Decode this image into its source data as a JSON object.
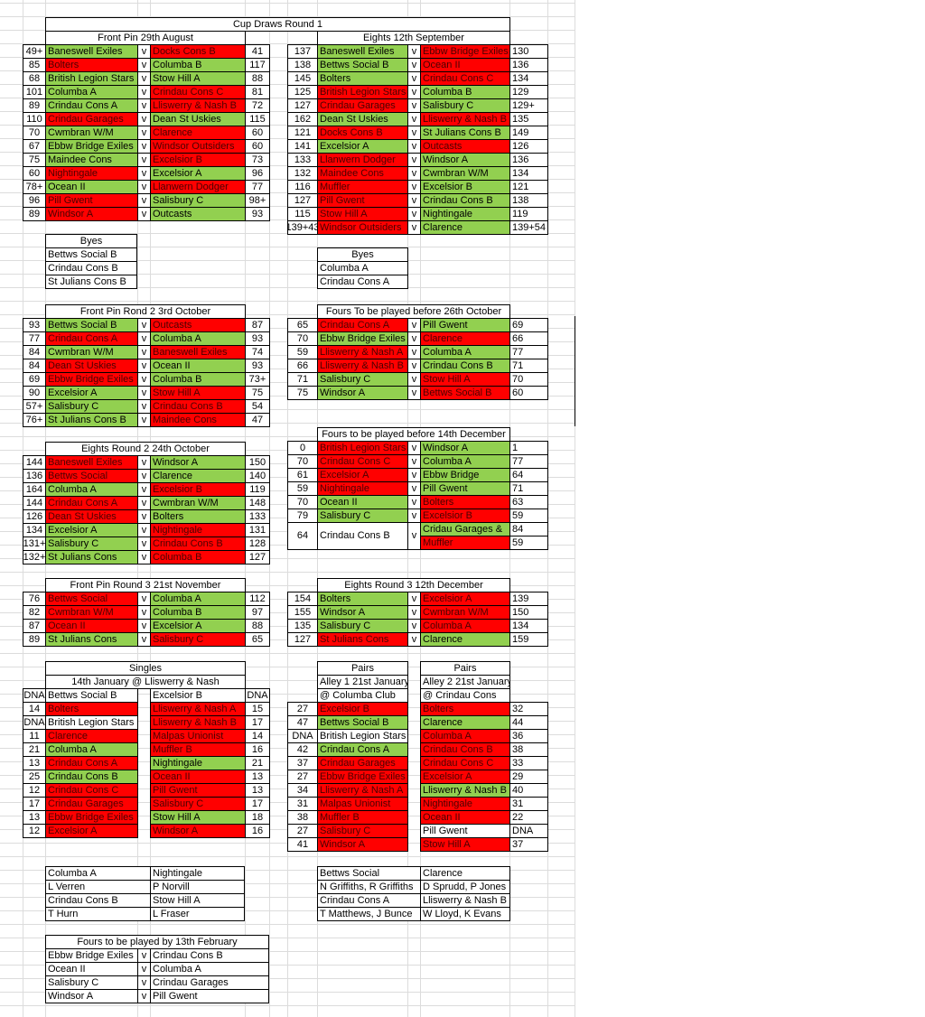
{
  "title": "Cup Draws Round 1",
  "palette": {
    "g": "#92d050",
    "r": "#ff0000",
    "w": "#ffffff"
  },
  "sections": {
    "front_pin_1": {
      "header": [
        [
          "Front Pin 29th August"
        ]
      ],
      "rows": [
        [
          "49+",
          "Baneswell Exiles",
          "v",
          "Docks Cons B",
          41
        ],
        [
          85,
          "Bolters",
          "v",
          "Columba B",
          117
        ],
        [
          68,
          "British Legion Stars",
          "v",
          "Stow Hill A",
          88
        ],
        [
          101,
          "Columba A",
          "v",
          "Crindau Cons C",
          81
        ],
        [
          89,
          "Crindau Cons A",
          "v",
          "Lliswerry & Nash B",
          72
        ],
        [
          110,
          "Crindau Garages",
          "v",
          "Dean St Uskies",
          115
        ],
        [
          70,
          "Cwmbran W/M",
          "v",
          "Clarence",
          60
        ],
        [
          67,
          "Ebbw Bridge Exiles",
          "v",
          "Windsor Outsiders",
          60
        ],
        [
          75,
          "Maindee Cons",
          "v",
          "Excelsior B",
          73
        ],
        [
          60,
          "Nightingale",
          "v",
          "Excelsior A",
          96
        ],
        [
          "78+",
          "Ocean II",
          "v",
          "Llanwern Dodger",
          77
        ],
        [
          96,
          "Pill Gwent",
          "v",
          "Salisbury C",
          "98+"
        ],
        [
          89,
          "Windsor A",
          "v",
          "Outcasts",
          93
        ]
      ],
      "fills": [
        "gr",
        "rg",
        "gg",
        "gr",
        "gr",
        "rg",
        "gr",
        "gr",
        "gr",
        "rg",
        "gr",
        "rg",
        "rg"
      ]
    },
    "eights_1": {
      "header": [
        [
          "Eights 12th September"
        ]
      ],
      "rows": [
        [
          137,
          "Baneswell Exiles",
          "v",
          "Ebbw Bridge Exiles",
          130
        ],
        [
          138,
          "Bettws Social B",
          "v",
          "Ocean II",
          136
        ],
        [
          145,
          "Bolters",
          "v",
          "Crindau Cons C",
          134
        ],
        [
          125,
          "British Legion Stars",
          "v",
          "Columba B",
          129
        ],
        [
          127,
          "Crindau Garages",
          "v",
          "Salisbury C",
          "129+"
        ],
        [
          162,
          "Dean St Uskies",
          "v",
          "Lliswerry & Nash B",
          135
        ],
        [
          121,
          "Docks Cons B",
          "v",
          "St Julians Cons B",
          149
        ],
        [
          141,
          "Excelsior A",
          "v",
          "Outcasts",
          126
        ],
        [
          133,
          "Llanwern Dodger",
          "v",
          "Windsor A",
          136
        ],
        [
          132,
          "Maindee Cons",
          "v",
          "Cwmbran W/M",
          134
        ],
        [
          116,
          "Muffler",
          "v",
          "Excelsior B",
          121
        ],
        [
          127,
          "Pill Gwent",
          "v",
          "Crindau Cons B",
          138
        ],
        [
          115,
          "Stow Hill A",
          "v",
          "Nightingale",
          119
        ],
        [
          "139+43",
          "Windsor Outsiders",
          "v",
          "Clarence",
          "139+54"
        ]
      ],
      "fills": [
        "gr",
        "gr",
        "gr",
        "rg",
        "rg",
        "gr",
        "rg",
        "gr",
        "rg",
        "rg",
        "rg",
        "rg",
        "rg",
        "rg"
      ]
    },
    "byes_1": {
      "header": [
        [
          "Byes"
        ]
      ],
      "rows": [
        [
          "Bettws Social B"
        ],
        [
          "Crindau Cons B"
        ],
        [
          "St Julians Cons B"
        ]
      ],
      "fills": [
        "w",
        "w",
        "w"
      ]
    },
    "byes_2": {
      "header": [
        [
          "Byes"
        ]
      ],
      "rows": [
        [
          "Columba A"
        ],
        [
          "Crindau Cons A"
        ]
      ],
      "fills": [
        "w",
        "w"
      ]
    },
    "front_pin_2": {
      "header": [
        [
          "Front Pin Rond 2  3rd October"
        ]
      ],
      "rows": [
        [
          93,
          "Bettws Social B",
          "v",
          "Outcasts",
          87
        ],
        [
          77,
          "Crindau Cons A",
          "v",
          "Columba A",
          93
        ],
        [
          84,
          "Cwmbran W/M",
          "v",
          "Baneswell Exiles",
          74
        ],
        [
          84,
          "Dean St Uskies",
          "v",
          "Ocean II",
          93
        ],
        [
          69,
          "Ebbw Bridge Exiles",
          "v",
          "Columba B",
          "73+"
        ],
        [
          90,
          "Excelsior A",
          "v",
          "Stow Hill A",
          75
        ],
        [
          "57+",
          "Salisbury C",
          "v",
          "Crindau Cons B",
          54
        ],
        [
          "76+",
          "St Julians Cons B",
          "v",
          "Maindee Cons",
          47
        ]
      ],
      "fills": [
        "gr",
        "rg",
        "gr",
        "rg",
        "rg",
        "gr",
        "gr",
        "gr"
      ]
    },
    "fours_oct": {
      "header": [
        [
          "Fours To be played before 26th October"
        ]
      ],
      "rows": [
        [
          65,
          "Crindau Cons A",
          "v",
          "Pill Gwent",
          69
        ],
        [
          70,
          "Ebbw Bridge Exiles",
          "v",
          "Clarence",
          66
        ],
        [
          59,
          "Lliswerry & Nash A",
          "v",
          "Columba A",
          77
        ],
        [
          66,
          "Lliswerry & Nash B",
          "v",
          "Crindau Cons B",
          71
        ],
        [
          71,
          "Salisbury C",
          "v",
          "Stow Hill A",
          70
        ],
        [
          75,
          "Windsor A",
          "v",
          "Bettws Social B",
          60
        ]
      ],
      "fills": [
        "rg",
        "gr",
        "rg",
        "rg",
        "gr",
        "gr"
      ]
    },
    "fours_dec": {
      "header": [
        [
          "Fours to be played before 14th December"
        ]
      ],
      "rows": [
        [
          0,
          "British Legion Stars",
          "v",
          "Windsor A",
          1
        ],
        [
          70,
          "Crindau Cons C",
          "v",
          "Columba A",
          77
        ],
        [
          61,
          "Excelsior A",
          "v",
          " Ebbw Bridge",
          64
        ],
        [
          59,
          "Nightingale",
          "v",
          "Pill Gwent",
          71
        ],
        [
          70,
          "Ocean II",
          "v",
          "Bolters",
          63
        ],
        [
          79,
          "Salisbury C",
          "v",
          "Excelsior B",
          59
        ],
        [
          64,
          "Crindau Cons B",
          "v",
          "Cridau Garages &",
          84
        ],
        [
          null,
          null,
          null,
          "Muffler",
          59
        ]
      ],
      "fills": [
        "rg",
        "rg",
        "rg",
        "rg",
        "gr",
        "gr",
        "wg",
        "wr"
      ]
    },
    "eights_2": {
      "header": [
        [
          "Eights Round 2 24th October"
        ]
      ],
      "rows": [
        [
          144,
          "Baneswell Exiles",
          "v",
          "Windsor A",
          150
        ],
        [
          136,
          "Bettws Social",
          "v",
          "Clarence",
          140
        ],
        [
          164,
          "Columba A",
          "v",
          "Excelsior B",
          119
        ],
        [
          144,
          "Crindau Cons A",
          "v",
          "Cwmbran W/M",
          148
        ],
        [
          126,
          "Dean St Uskies",
          "v",
          "Bolters",
          133
        ],
        [
          134,
          "Excelsior A",
          "v",
          "Nightingale",
          131
        ],
        [
          "131+",
          "Salisbury C",
          "v",
          " Crindau Cons B",
          128
        ],
        [
          "132+",
          "St Julians Cons",
          "v",
          " Columba B",
          127
        ]
      ],
      "fills": [
        "rg",
        "rg",
        "gr",
        "rg",
        "rg",
        "gr",
        "gr",
        "gr"
      ]
    },
    "front_pin_3": {
      "header": [
        [
          "Front Pin Round 3 21st November"
        ]
      ],
      "rows": [
        [
          76,
          "Bettws Social",
          "v",
          "Columba A",
          112
        ],
        [
          82,
          "Cwmbran W/M",
          "v",
          " Columba B",
          97
        ],
        [
          87,
          "Ocean II",
          "v",
          "Excelsior A",
          88
        ],
        [
          89,
          "St Julians Cons",
          "v",
          "Salisbury C",
          65
        ]
      ],
      "fills": [
        "rg",
        "rg",
        "rg",
        "gr"
      ]
    },
    "eights_3": {
      "header": [
        [
          "Eights Round 3 12th December"
        ]
      ],
      "rows": [
        [
          154,
          "Bolters",
          "v",
          "Excelsior A",
          139
        ],
        [
          155,
          "Windsor A",
          "v",
          "Cwmbran W/M",
          150
        ],
        [
          135,
          "Salisbury C",
          "v",
          "Columba A",
          134
        ],
        [
          127,
          "St Julians Cons",
          "v",
          "Clarence",
          159
        ]
      ],
      "fills": [
        "gr",
        "gr",
        "gr",
        "rg"
      ]
    },
    "singles": {
      "header": [
        [
          "Singles"
        ],
        [
          "14th January  @ Lliswerry & Nash"
        ]
      ],
      "rows": [
        [
          "DNA",
          "Bettws Social B",
          "Excelsior B",
          "DNA"
        ],
        [
          14,
          "Bolters",
          "Lliswerry & Nash A",
          15
        ],
        [
          "DNA",
          "British Legion Stars",
          "Lliswerry & Nash B",
          17
        ],
        [
          11,
          "Clarence",
          "Malpas Unionist",
          14
        ],
        [
          21,
          "Columba A",
          "Muffler B",
          16
        ],
        [
          13,
          "Crindau Cons A",
          "Nightingale",
          21
        ],
        [
          25,
          "Crindau Cons B",
          "Ocean II",
          13
        ],
        [
          12,
          "Crindau Cons C",
          "Pill Gwent",
          13
        ],
        [
          17,
          "Crindau Garages",
          "Salisbury C",
          17
        ],
        [
          13,
          "Ebbw Bridge Exiles",
          "Stow Hill A",
          18
        ],
        [
          12,
          "Excelsior A",
          "Windsor A",
          16
        ]
      ],
      "fills": [
        "ww",
        "rr",
        "wr",
        "rr",
        "gr",
        "rg",
        "gr",
        "rr",
        "rr",
        "rg",
        "rr"
      ]
    },
    "pairs": {
      "header": [
        [
          "Pairs",
          "Pairs"
        ],
        [
          "Alley 1 21st January",
          "Alley 2 21st January"
        ],
        [
          "@ Columba Club",
          "@ Crindau Cons"
        ]
      ],
      "rows": [
        [
          27,
          "Excelsior B",
          "Bolters",
          32
        ],
        [
          47,
          "Bettws Social B",
          "Clarence",
          44
        ],
        [
          "DNA",
          "British Legion Stars",
          "Columba A",
          36
        ],
        [
          42,
          "Crindau Cons A",
          "Crindau Cons B",
          38
        ],
        [
          37,
          "Crindau Garages",
          "Crindau Cons C",
          33
        ],
        [
          27,
          "Ebbw Bridge Exiles",
          "Excelsior A",
          29
        ],
        [
          34,
          "Lliswerry & Nash A",
          "Lliswerry & Nash B",
          40
        ],
        [
          31,
          "Malpas Unionist",
          "Nightingale",
          31
        ],
        [
          38,
          "Muffler B",
          "Ocean II",
          22
        ],
        [
          27,
          "Salisbury C",
          "Pill Gwent",
          "DNA"
        ],
        [
          41,
          "Windsor A",
          "Stow Hill A",
          37
        ]
      ],
      "fills": [
        "rr",
        "gg",
        "wr",
        "gr",
        "rr",
        "rr",
        "rg",
        "rr",
        "rr",
        "rw",
        "rr"
      ]
    },
    "teams_left": {
      "rows": [
        [
          "Columba A",
          "Nightingale"
        ],
        [
          "L Verren",
          "P Norvill"
        ],
        [
          "Crindau Cons B",
          "Stow Hill A"
        ],
        [
          "T Hurn",
          "L Fraser"
        ]
      ]
    },
    "teams_right": {
      "rows": [
        [
          "Bettws Social",
          "Clarence"
        ],
        [
          "N Griffiths, R Griffiths",
          "D Sprudd, P Jones"
        ],
        [
          "Crindau Cons A",
          "Lliswerry & Nash B"
        ],
        [
          "T Matthews, J Bunce",
          "W Lloyd, K Evans"
        ]
      ]
    },
    "fours_feb": {
      "header": [
        [
          "Fours to be played by 13th February"
        ]
      ],
      "rows": [
        [
          "Ebbw Bridge Exiles",
          "v",
          "Crindau Cons B"
        ],
        [
          "Ocean II",
          "v",
          "Columba A"
        ],
        [
          "Salisbury C",
          "v",
          "Crindau Garages"
        ],
        [
          "Windsor A",
          "v",
          "Pill Gwent"
        ]
      ]
    }
  }
}
